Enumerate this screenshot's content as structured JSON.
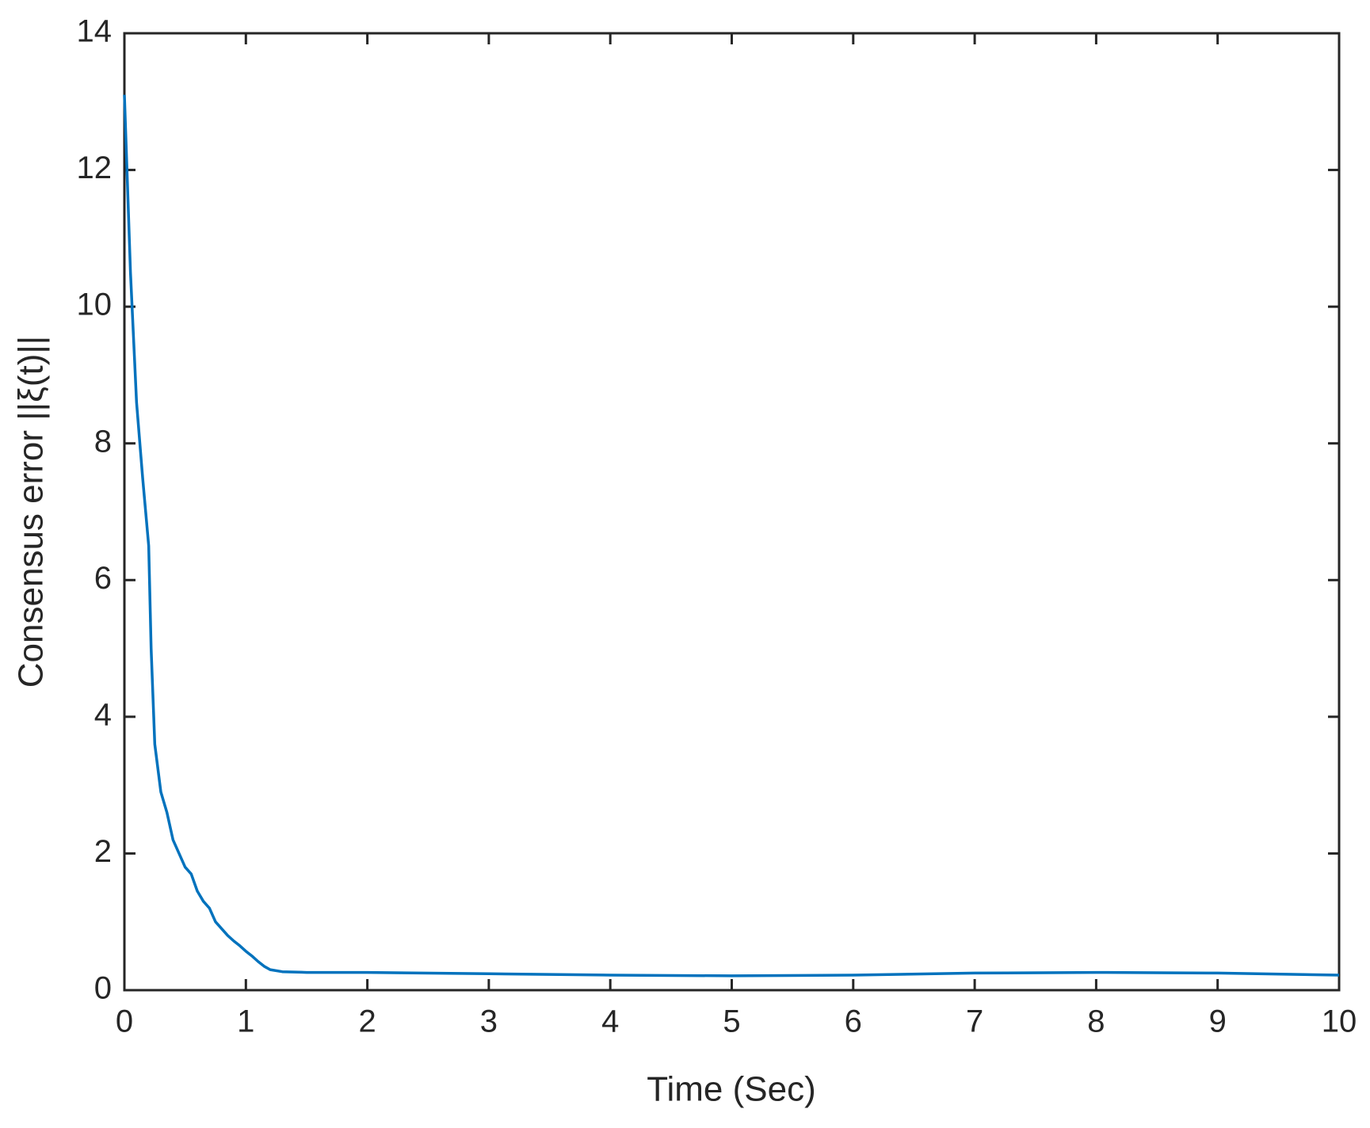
{
  "chart_data": {
    "type": "line",
    "x_label": "Time (Sec)",
    "y_label": "Consensus error ||ξ(t)||",
    "x": [
      0,
      0.05,
      0.1,
      0.15,
      0.2,
      0.22,
      0.25,
      0.3,
      0.35,
      0.4,
      0.45,
      0.5,
      0.55,
      0.6,
      0.65,
      0.7,
      0.75,
      0.8,
      0.85,
      0.9,
      0.95,
      1.0,
      1.05,
      1.1,
      1.15,
      1.2,
      1.3,
      1.5,
      2,
      3,
      4,
      5,
      6,
      7,
      8,
      9,
      10
    ],
    "series": [
      {
        "color": "#0072bd",
        "values": [
          13.1,
          10.5,
          8.6,
          7.5,
          6.5,
          5.0,
          3.6,
          2.9,
          2.6,
          2.2,
          2.0,
          1.8,
          1.7,
          1.45,
          1.3,
          1.2,
          1.0,
          0.9,
          0.8,
          0.72,
          0.65,
          0.57,
          0.5,
          0.42,
          0.35,
          0.3,
          0.27,
          0.26,
          0.26,
          0.24,
          0.22,
          0.21,
          0.22,
          0.25,
          0.26,
          0.25,
          0.22
        ]
      }
    ],
    "xlim": [
      0,
      10
    ],
    "xticks": [
      0,
      1,
      2,
      3,
      4,
      5,
      6,
      7,
      8,
      9,
      10
    ],
    "ylim": [
      0,
      14
    ],
    "yticks": [
      0,
      2,
      4,
      6,
      8,
      10,
      12,
      14
    ],
    "grid": false
  }
}
